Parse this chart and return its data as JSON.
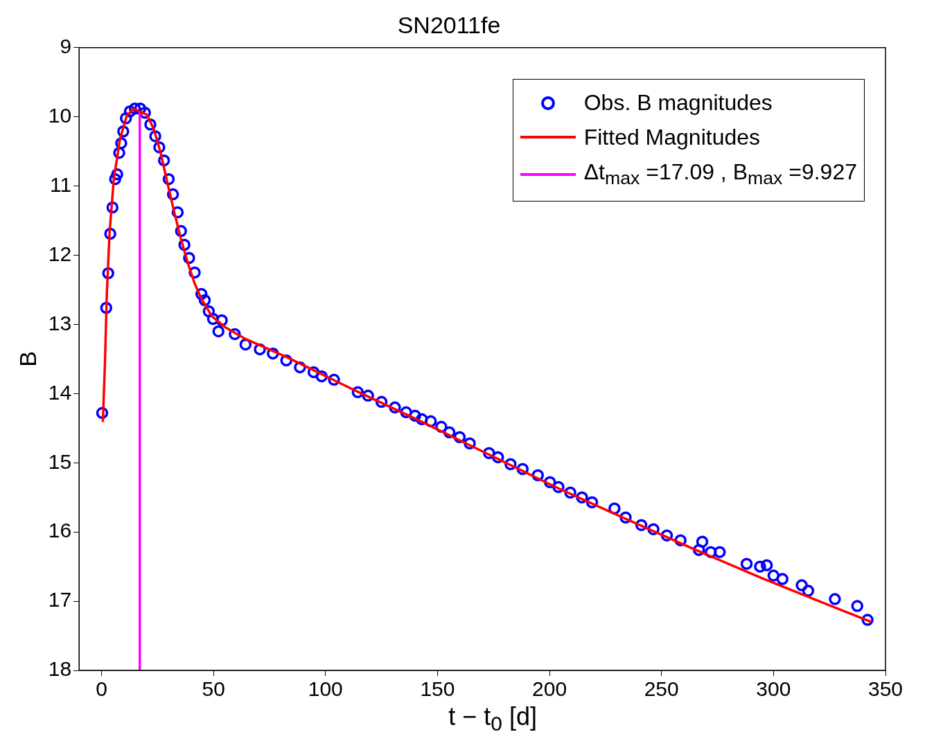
{
  "chart_data": {
    "type": "scatter",
    "title": "SN2011fe",
    "xlabel": "t − t$_{0}$  [d]",
    "ylabel": "B",
    "xlim": [
      -10,
      350
    ],
    "xticks": [
      0,
      50,
      100,
      150,
      200,
      250,
      300,
      350
    ],
    "ylim": [
      18,
      9
    ],
    "yticks": [
      9,
      10,
      11,
      12,
      13,
      14,
      15,
      16,
      17,
      18
    ],
    "grid": false,
    "legend": "top right",
    "series": [
      {
        "name": "Obs. B magnitudes",
        "type": "scatter",
        "marker": "circle",
        "color": "#0000ff",
        "x": [
          0.3,
          2.1,
          3.0,
          3.9,
          4.9,
          6.1,
          7.0,
          7.9,
          8.8,
          9.7,
          10.9,
          12.7,
          14.9,
          17.3,
          19.4,
          21.8,
          24.0,
          25.8,
          27.9,
          30.0,
          31.9,
          34.0,
          35.5,
          37.0,
          39.1,
          41.6,
          44.6,
          46.1,
          47.9,
          49.8,
          52.2,
          53.7,
          59.5,
          64.3,
          70.7,
          76.5,
          82.5,
          88.6,
          94.7,
          98.3,
          103.8,
          114.4,
          119,
          125,
          131,
          136,
          140,
          143,
          147,
          151.7,
          155.3,
          159.9,
          164.4,
          173,
          177,
          182.6,
          188,
          194.8,
          200.2,
          204,
          209.3,
          214.5,
          219,
          229,
          234,
          241,
          246.4,
          252.4,
          258.5,
          266.7,
          268.2,
          272,
          276,
          288,
          294,
          297,
          300,
          304,
          312.6,
          315.5,
          327.4,
          337.4,
          342
        ],
        "values": [
          14.28,
          12.76,
          12.26,
          11.69,
          11.31,
          10.9,
          10.83,
          10.52,
          10.38,
          10.21,
          10.02,
          9.92,
          9.88,
          9.88,
          9.94,
          10.11,
          10.28,
          10.44,
          10.63,
          10.9,
          11.12,
          11.38,
          11.65,
          11.85,
          12.04,
          12.25,
          12.56,
          12.65,
          12.81,
          12.92,
          13.1,
          12.94,
          13.14,
          13.29,
          13.36,
          13.42,
          13.52,
          13.62,
          13.69,
          13.75,
          13.8,
          13.98,
          14.03,
          14.12,
          14.2,
          14.27,
          14.32,
          14.37,
          14.4,
          14.48,
          14.56,
          14.63,
          14.72,
          14.86,
          14.92,
          15.02,
          15.09,
          15.18,
          15.28,
          15.35,
          15.43,
          15.5,
          15.57,
          15.66,
          15.79,
          15.9,
          15.96,
          16.05,
          16.12,
          16.26,
          16.14,
          16.29,
          16.29,
          16.46,
          16.5,
          16.48,
          16.63,
          16.68,
          16.77,
          16.85,
          16.97,
          17.07,
          17.27
        ]
      },
      {
        "name": "Fitted Magnitudes",
        "type": "line",
        "marker": "none",
        "line_style": "solid",
        "color": "#ff0000",
        "x": [
          0.6,
          1.5,
          2.4,
          3.6,
          5.5,
          8.2,
          11.2,
          14.3,
          17.09,
          20.3,
          23.4,
          26.4,
          29.4,
          32.5,
          35.5,
          38.5,
          41.6,
          44.6,
          49.2,
          55.2,
          64.3,
          82.5,
          112.9,
          143.2,
          173.5,
          204,
          234,
          264.6,
          295,
          325,
          343.7
        ],
        "values": [
          14.41,
          13.6,
          12.54,
          11.67,
          10.9,
          10.33,
          9.99,
          9.88,
          9.927,
          9.97,
          10.18,
          10.52,
          10.95,
          11.38,
          11.77,
          12.11,
          12.41,
          12.63,
          12.88,
          13.04,
          13.21,
          13.47,
          13.95,
          14.41,
          14.89,
          15.37,
          15.81,
          16.25,
          16.67,
          17.06,
          17.3
        ]
      },
      {
        "name": "Δt$_{max}$ =17.09 , B$_{max}$ =9.927",
        "type": "line",
        "marker": "none",
        "line_style": "solid",
        "color": "#ff00ff",
        "x": [
          17.09,
          17.09
        ],
        "values": [
          18,
          9.927
        ]
      }
    ]
  }
}
